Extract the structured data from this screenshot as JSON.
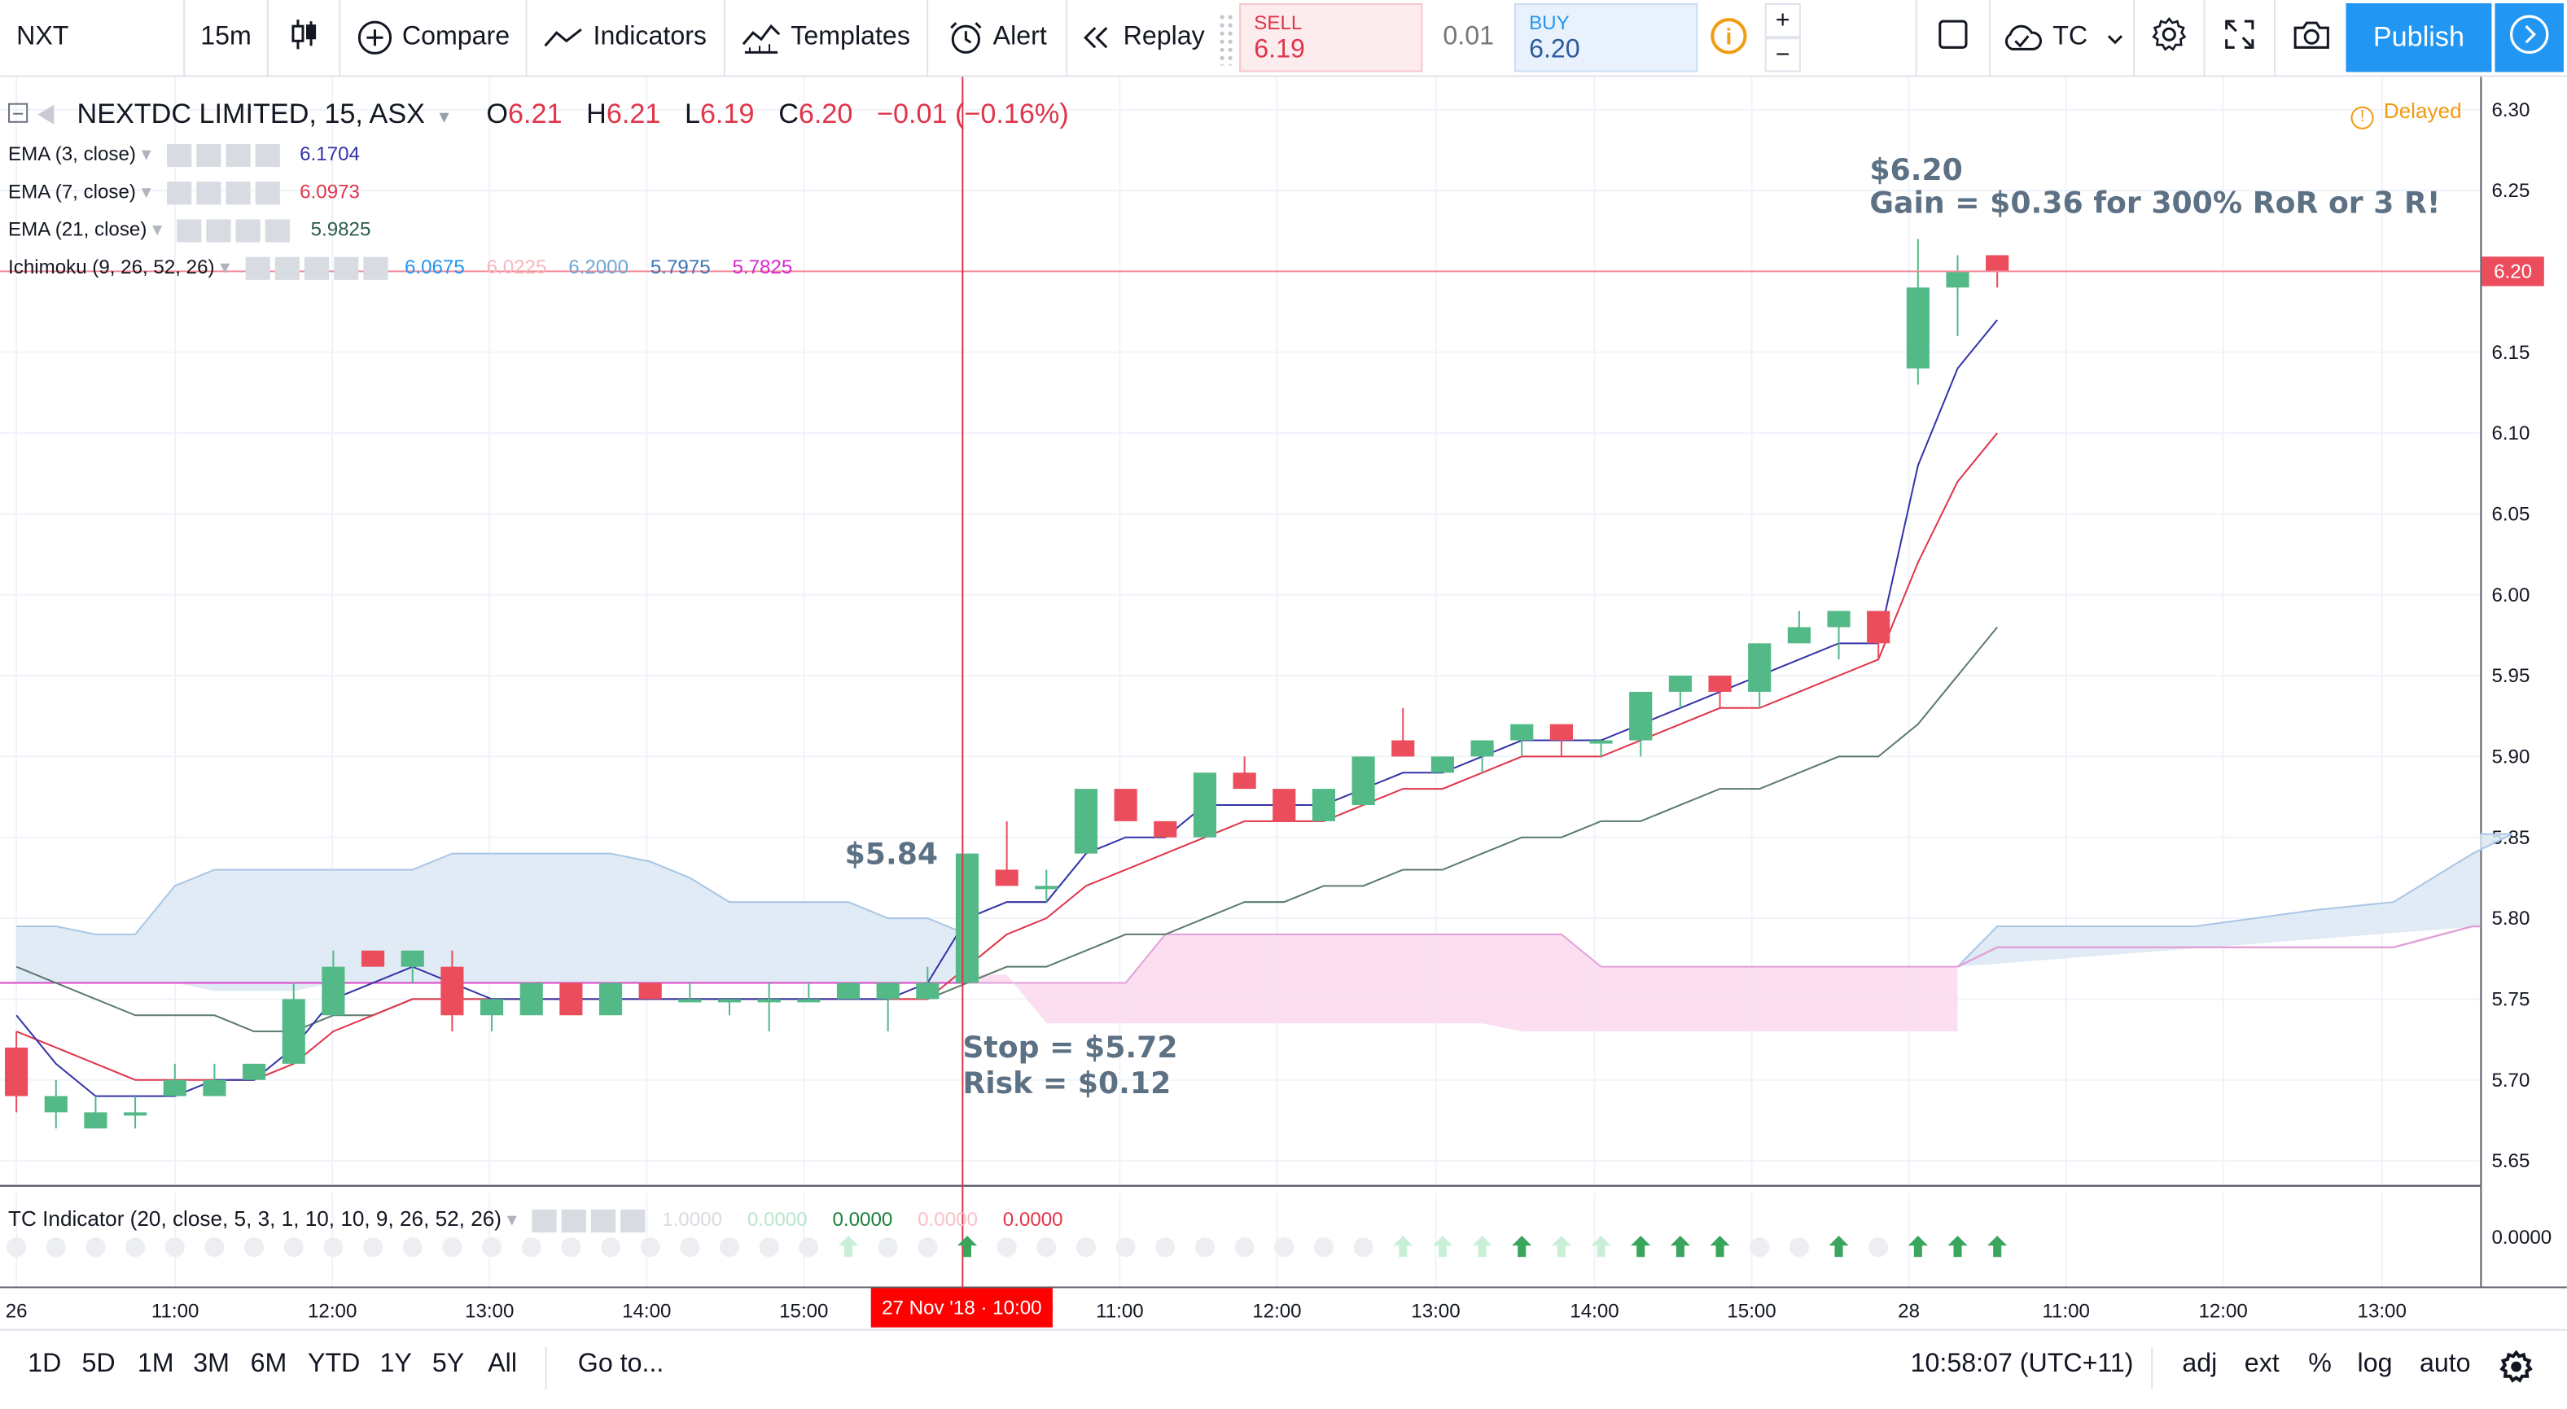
{
  "toolbar": {
    "symbol": "NXT",
    "interval": "15m",
    "compare": "Compare",
    "indicators": "Indicators",
    "templates": "Templates",
    "alert": "Alert",
    "replay": "Replay",
    "sell_label": "SELL",
    "sell_price": "6.19",
    "spread": "0.01",
    "buy_label": "BUY",
    "buy_price": "6.20",
    "plus": "+",
    "minus": "−",
    "layout_name": "TC",
    "publish": "Publish"
  },
  "legend": {
    "title": "NEXTDC LIMITED, 15, ASX",
    "o_label": "O",
    "o_value": "6.21",
    "h_label": "H",
    "h_value": "6.21",
    "l_label": "L",
    "l_value": "6.19",
    "c_label": "C",
    "c_value": "6.20",
    "change": "−0.01 (−0.16%)",
    "delayed": "Delayed",
    "ema3_name": "EMA (3, close)",
    "ema3_value": "6.1704",
    "ema7_name": "EMA (7, close)",
    "ema7_value": "6.0973",
    "ema21_name": "EMA (21, close)",
    "ema21_value": "5.9825",
    "ichi_name": "Ichimoku (9, 26, 52, 26)",
    "ichi_v1": "6.0675",
    "ichi_v2": "6.0225",
    "ichi_v3": "6.2000",
    "ichi_v4": "5.7975",
    "ichi_v5": "5.7825",
    "tc_name": "TC Indicator (20, close, 5, 3, 1, 10, 10, 9, 26, 52, 26)",
    "tc_v1": "1.0000",
    "tc_v2": "0.0000",
    "tc_v3": "0.0000",
    "tc_v4": "0.0000",
    "tc_v5": "0.0000"
  },
  "price_axis": {
    "ticks": [
      "6.30",
      "6.25",
      "6.20",
      "6.15",
      "6.10",
      "6.05",
      "6.00",
      "5.95",
      "5.90",
      "5.85",
      "5.80",
      "5.75",
      "5.70",
      "5.65"
    ],
    "current_price": "6.20",
    "tc_axis": "0.0000"
  },
  "time_axis": {
    "ticks": [
      "26",
      "11:00",
      "12:00",
      "13:00",
      "14:00",
      "15:00",
      "11:00",
      "12:00",
      "13:00",
      "14:00",
      "15:00",
      "28",
      "11:00",
      "12:00",
      "13:00"
    ],
    "crosshair_label": "27 Nov '18 · 10:00"
  },
  "annotations": {
    "entry": "$5.84",
    "stop": "Stop = $5.72",
    "risk": "Risk = $0.12",
    "target_price": "$6.20",
    "gain": "Gain = $0.36 for 300% RoR or 3 R!"
  },
  "bottom_bar": {
    "ranges": [
      "1D",
      "5D",
      "1M",
      "3M",
      "6M",
      "YTD",
      "1Y",
      "5Y",
      "All"
    ],
    "goto": "Go to...",
    "clock": "10:58:07 (UTC+11)",
    "adj": "adj",
    "ext": "ext",
    "percent": "%",
    "log": "log",
    "auto": "auto"
  },
  "colors": {
    "up": "#53b987",
    "down": "#eb4d5c",
    "ema3": "#3333a8",
    "ema7": "#e0354a",
    "ema21": "#5b7a6c",
    "cloud_up": "#dbe7f3",
    "cloud_down": "#fbdcef",
    "accent": "#2196f3"
  },
  "chart_data": {
    "type": "candlestick",
    "title": "NEXTDC LIMITED, 15, ASX",
    "ylim": [
      5.63,
      6.31
    ],
    "candles": [
      {
        "o": 5.72,
        "h": 5.73,
        "l": 5.68,
        "c": 5.69
      },
      {
        "o": 5.68,
        "h": 5.7,
        "l": 5.67,
        "c": 5.69
      },
      {
        "o": 5.67,
        "h": 5.69,
        "l": 5.67,
        "c": 5.68
      },
      {
        "o": 5.68,
        "h": 5.69,
        "l": 5.67,
        "c": 5.68
      },
      {
        "o": 5.69,
        "h": 5.71,
        "l": 5.69,
        "c": 5.7
      },
      {
        "o": 5.69,
        "h": 5.71,
        "l": 5.69,
        "c": 5.7
      },
      {
        "o": 5.7,
        "h": 5.71,
        "l": 5.7,
        "c": 5.71
      },
      {
        "o": 5.71,
        "h": 5.76,
        "l": 5.71,
        "c": 5.75
      },
      {
        "o": 5.74,
        "h": 5.78,
        "l": 5.74,
        "c": 5.77
      },
      {
        "o": 5.78,
        "h": 5.78,
        "l": 5.77,
        "c": 5.77
      },
      {
        "o": 5.77,
        "h": 5.78,
        "l": 5.76,
        "c": 5.78
      },
      {
        "o": 5.77,
        "h": 5.78,
        "l": 5.73,
        "c": 5.74
      },
      {
        "o": 5.74,
        "h": 5.75,
        "l": 5.73,
        "c": 5.75
      },
      {
        "o": 5.74,
        "h": 5.76,
        "l": 5.74,
        "c": 5.76
      },
      {
        "o": 5.76,
        "h": 5.76,
        "l": 5.74,
        "c": 5.74
      },
      {
        "o": 5.74,
        "h": 5.76,
        "l": 5.74,
        "c": 5.76
      },
      {
        "o": 5.76,
        "h": 5.76,
        "l": 5.75,
        "c": 5.75
      },
      {
        "o": 5.75,
        "h": 5.76,
        "l": 5.75,
        "c": 5.75
      },
      {
        "o": 5.75,
        "h": 5.75,
        "l": 5.74,
        "c": 5.75
      },
      {
        "o": 5.75,
        "h": 5.76,
        "l": 5.73,
        "c": 5.75
      },
      {
        "o": 5.75,
        "h": 5.76,
        "l": 5.75,
        "c": 5.75
      },
      {
        "o": 5.75,
        "h": 5.76,
        "l": 5.75,
        "c": 5.76
      },
      {
        "o": 5.75,
        "h": 5.76,
        "l": 5.73,
        "c": 5.76
      },
      {
        "o": 5.75,
        "h": 5.77,
        "l": 5.75,
        "c": 5.76
      },
      {
        "o": 5.76,
        "h": 5.84,
        "l": 5.76,
        "c": 5.84
      },
      {
        "o": 5.83,
        "h": 5.86,
        "l": 5.82,
        "c": 5.82
      },
      {
        "o": 5.82,
        "h": 5.83,
        "l": 5.81,
        "c": 5.82
      },
      {
        "o": 5.84,
        "h": 5.88,
        "l": 5.84,
        "c": 5.88
      },
      {
        "o": 5.88,
        "h": 5.88,
        "l": 5.86,
        "c": 5.86
      },
      {
        "o": 5.86,
        "h": 5.86,
        "l": 5.85,
        "c": 5.85
      },
      {
        "o": 5.85,
        "h": 5.89,
        "l": 5.85,
        "c": 5.89
      },
      {
        "o": 5.89,
        "h": 5.9,
        "l": 5.88,
        "c": 5.88
      },
      {
        "o": 5.88,
        "h": 5.88,
        "l": 5.86,
        "c": 5.86
      },
      {
        "o": 5.86,
        "h": 5.88,
        "l": 5.86,
        "c": 5.88
      },
      {
        "o": 5.87,
        "h": 5.9,
        "l": 5.87,
        "c": 5.9
      },
      {
        "o": 5.91,
        "h": 5.93,
        "l": 5.9,
        "c": 5.9
      },
      {
        "o": 5.89,
        "h": 5.9,
        "l": 5.89,
        "c": 5.9
      },
      {
        "o": 5.9,
        "h": 5.91,
        "l": 5.89,
        "c": 5.91
      },
      {
        "o": 5.91,
        "h": 5.92,
        "l": 5.9,
        "c": 5.92
      },
      {
        "o": 5.92,
        "h": 5.92,
        "l": 5.9,
        "c": 5.91
      },
      {
        "o": 5.91,
        "h": 5.91,
        "l": 5.9,
        "c": 5.91
      },
      {
        "o": 5.91,
        "h": 5.94,
        "l": 5.9,
        "c": 5.94
      },
      {
        "o": 5.94,
        "h": 5.95,
        "l": 5.93,
        "c": 5.95
      },
      {
        "o": 5.95,
        "h": 5.95,
        "l": 5.93,
        "c": 5.94
      },
      {
        "o": 5.94,
        "h": 5.97,
        "l": 5.93,
        "c": 5.97
      },
      {
        "o": 5.97,
        "h": 5.99,
        "l": 5.97,
        "c": 5.98
      },
      {
        "o": 5.98,
        "h": 5.99,
        "l": 5.96,
        "c": 5.99
      },
      {
        "o": 5.99,
        "h": 5.99,
        "l": 5.96,
        "c": 5.97
      },
      {
        "o": 6.14,
        "h": 6.22,
        "l": 6.13,
        "c": 6.19
      },
      {
        "o": 6.19,
        "h": 6.21,
        "l": 6.16,
        "c": 6.2
      },
      {
        "o": 6.21,
        "h": 6.21,
        "l": 6.19,
        "c": 6.2
      }
    ],
    "ema3": [
      5.74,
      5.71,
      5.69,
      5.69,
      5.69,
      5.7,
      5.7,
      5.72,
      5.75,
      5.76,
      5.77,
      5.76,
      5.75,
      5.75,
      5.75,
      5.75,
      5.75,
      5.75,
      5.75,
      5.75,
      5.75,
      5.75,
      5.75,
      5.76,
      5.8,
      5.81,
      5.81,
      5.84,
      5.85,
      5.85,
      5.87,
      5.87,
      5.87,
      5.87,
      5.88,
      5.89,
      5.89,
      5.9,
      5.91,
      5.91,
      5.91,
      5.92,
      5.93,
      5.94,
      5.95,
      5.96,
      5.97,
      5.97,
      6.08,
      6.14,
      6.17
    ],
    "ema7": [
      5.73,
      5.72,
      5.71,
      5.7,
      5.7,
      5.7,
      5.7,
      5.71,
      5.73,
      5.74,
      5.75,
      5.75,
      5.75,
      5.75,
      5.75,
      5.75,
      5.75,
      5.75,
      5.75,
      5.75,
      5.75,
      5.75,
      5.75,
      5.75,
      5.77,
      5.79,
      5.8,
      5.82,
      5.83,
      5.84,
      5.85,
      5.86,
      5.86,
      5.86,
      5.87,
      5.88,
      5.88,
      5.89,
      5.9,
      5.9,
      5.9,
      5.91,
      5.92,
      5.93,
      5.93,
      5.94,
      5.95,
      5.96,
      6.02,
      6.07,
      6.1
    ],
    "ema21": [
      5.77,
      5.76,
      5.75,
      5.74,
      5.74,
      5.74,
      5.73,
      5.73,
      5.74,
      5.74,
      5.75,
      5.75,
      5.75,
      5.75,
      5.75,
      5.75,
      5.75,
      5.75,
      5.75,
      5.75,
      5.75,
      5.75,
      5.75,
      5.75,
      5.76,
      5.77,
      5.77,
      5.78,
      5.79,
      5.79,
      5.8,
      5.81,
      5.81,
      5.82,
      5.82,
      5.83,
      5.83,
      5.84,
      5.85,
      5.85,
      5.86,
      5.86,
      5.87,
      5.88,
      5.88,
      5.89,
      5.9,
      5.9,
      5.92,
      5.95,
      5.98
    ]
  }
}
